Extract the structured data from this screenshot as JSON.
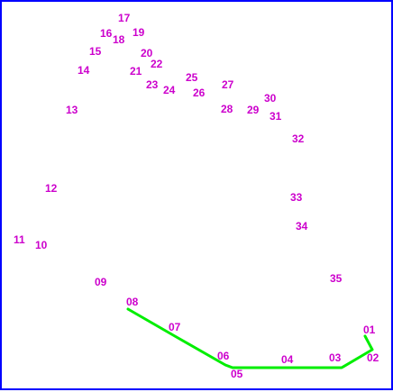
{
  "puzzle": {
    "label_color": "#cc00cc",
    "line_color": "#00ee00",
    "border_color": "#0000ff",
    "points": [
      {
        "id": "p01",
        "label": "01"
      },
      {
        "id": "p02",
        "label": "02"
      },
      {
        "id": "p03",
        "label": "03"
      },
      {
        "id": "p04",
        "label": "04"
      },
      {
        "id": "p05",
        "label": "05"
      },
      {
        "id": "p06",
        "label": "06"
      },
      {
        "id": "p07",
        "label": "07"
      },
      {
        "id": "p08",
        "label": "08"
      },
      {
        "id": "p09",
        "label": "09"
      },
      {
        "id": "p10",
        "label": "10"
      },
      {
        "id": "p11",
        "label": "11"
      },
      {
        "id": "p12",
        "label": "12"
      },
      {
        "id": "p13",
        "label": "13"
      },
      {
        "id": "p14",
        "label": "14"
      },
      {
        "id": "p15",
        "label": "15"
      },
      {
        "id": "p16",
        "label": "16"
      },
      {
        "id": "p17",
        "label": "17"
      },
      {
        "id": "p18",
        "label": "18"
      },
      {
        "id": "p19",
        "label": "19"
      },
      {
        "id": "p20",
        "label": "20"
      },
      {
        "id": "p21",
        "label": "21"
      },
      {
        "id": "p22",
        "label": "22"
      },
      {
        "id": "p23",
        "label": "23"
      },
      {
        "id": "p24",
        "label": "24"
      },
      {
        "id": "p25",
        "label": "25"
      },
      {
        "id": "p26",
        "label": "26"
      },
      {
        "id": "p27",
        "label": "27"
      },
      {
        "id": "p28",
        "label": "28"
      },
      {
        "id": "p29",
        "label": "29"
      },
      {
        "id": "p30",
        "label": "30"
      },
      {
        "id": "p31",
        "label": "31"
      },
      {
        "id": "p32",
        "label": "32"
      },
      {
        "id": "p33",
        "label": "33"
      },
      {
        "id": "p34",
        "label": "34"
      },
      {
        "id": "p35",
        "label": "35"
      }
    ],
    "connected_path": [
      "p01",
      "p02",
      "p03",
      "p04",
      "p05",
      "p06",
      "p07",
      "p08"
    ]
  }
}
